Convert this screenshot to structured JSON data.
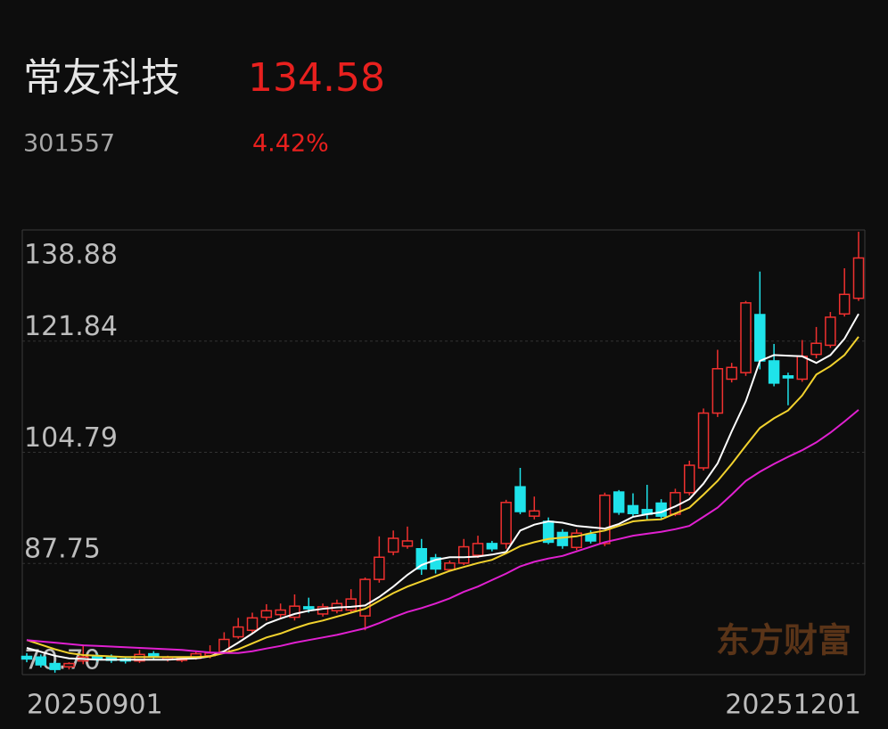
{
  "header": {
    "name": "常友科技",
    "price": "134.58",
    "code": "301557",
    "change": "4.42%"
  },
  "chart_data": {
    "type": "candlestick",
    "watermark": "东方财富",
    "categories": [
      "20250901",
      null,
      null,
      null,
      null,
      null,
      null,
      null,
      null,
      null,
      null,
      null,
      null,
      null,
      null,
      null,
      null,
      null,
      null,
      null,
      null,
      null,
      null,
      null,
      null,
      null,
      null,
      null,
      null,
      null,
      null,
      null,
      null,
      null,
      null,
      null,
      null,
      null,
      null,
      null,
      null,
      null,
      null,
      null,
      null,
      null,
      null,
      null,
      null,
      null,
      null,
      null,
      null,
      null,
      null,
      null,
      null,
      null,
      null,
      "20251201"
    ],
    "open": [
      73.5,
      73.4,
      72.4,
      71.9,
      72.8,
      73.5,
      73.4,
      73.1,
      72.8,
      73.9,
      73.0,
      72.9,
      73.2,
      73.6,
      74.2,
      76.5,
      77.5,
      79.5,
      79.9,
      79.5,
      81.1,
      80.0,
      80.5,
      80.6,
      79.7,
      85.3,
      89.5,
      90.4,
      90.0,
      88.6,
      86.8,
      87.8,
      89.0,
      90.8,
      90.8,
      99.5,
      95.0,
      94.2,
      92.5,
      90.2,
      92.2,
      90.8,
      98.7,
      96.6,
      96.0,
      97.0,
      95.3,
      98.6,
      102.4,
      110.8,
      116.0,
      117.0,
      125.9,
      118.8,
      116.5,
      116.0,
      119.8,
      121.2,
      126.0,
      128.4
    ],
    "close": [
      73.1,
      72.2,
      71.5,
      72.4,
      73.4,
      73.1,
      72.9,
      72.8,
      73.8,
      73.5,
      73.3,
      73.2,
      73.9,
      74.0,
      76.1,
      78.0,
      79.4,
      80.5,
      80.6,
      81.2,
      80.8,
      81.1,
      81.6,
      82.3,
      85.3,
      88.7,
      91.6,
      91.2,
      86.9,
      86.9,
      87.8,
      90.3,
      90.8,
      90.0,
      97.1,
      95.7,
      95.8,
      91.0,
      90.5,
      92.4,
      91.2,
      98.2,
      95.6,
      95.4,
      95.3,
      95.0,
      98.6,
      102.8,
      110.8,
      117.6,
      117.8,
      127.7,
      118.8,
      115.4,
      116.2,
      119.5,
      121.5,
      125.5,
      129.0,
      134.58
    ],
    "high": [
      74.0,
      73.8,
      72.8,
      72.6,
      75.3,
      73.9,
      73.8,
      73.4,
      74.5,
      74.3,
      73.6,
      73.5,
      74.3,
      75.2,
      77.2,
      79.4,
      80.2,
      81.5,
      81.6,
      83.0,
      82.5,
      81.6,
      82.2,
      83.8,
      85.6,
      91.9,
      92.8,
      93.4,
      91.5,
      89.2,
      88.2,
      91.5,
      92.0,
      91.2,
      97.5,
      102.4,
      98.0,
      94.8,
      93.0,
      93.0,
      92.8,
      98.6,
      99.0,
      98.5,
      99.8,
      97.6,
      99.2,
      103.5,
      111.5,
      120.5,
      118.5,
      128.0,
      132.5,
      121.4,
      117.0,
      122.0,
      124.0,
      126.3,
      133.0,
      138.6
    ],
    "low": [
      72.6,
      71.8,
      71.0,
      71.5,
      72.3,
      72.7,
      72.5,
      72.4,
      72.5,
      73.1,
      72.7,
      72.6,
      73.0,
      73.2,
      73.9,
      76.2,
      77.1,
      79.0,
      79.4,
      79.0,
      80.2,
      79.6,
      80.1,
      80.2,
      77.5,
      84.8,
      89.0,
      90.0,
      86.0,
      86.2,
      86.5,
      87.5,
      88.6,
      89.6,
      90.0,
      95.3,
      94.5,
      90.7,
      90.0,
      89.8,
      90.8,
      90.4,
      95.2,
      95.0,
      94.5,
      94.6,
      95.0,
      98.2,
      102.0,
      110.2,
      115.5,
      116.5,
      117.5,
      114.9,
      112.0,
      115.6,
      119.2,
      120.8,
      125.6,
      128.0
    ],
    "up_color": "#f0302f",
    "down_color": "#1fe3ea",
    "lines": [
      {
        "color": "#ffffff",
        "values": [
          74.8,
          74.2,
          73.6,
          73.2,
          73.1,
          73.0,
          73.0,
          73.0,
          73.0,
          73.0,
          73.0,
          73.1,
          73.2,
          73.5,
          74.3,
          75.6,
          77.0,
          78.5,
          79.3,
          80.0,
          80.5,
          80.8,
          81.0,
          81.1,
          81.3,
          82.6,
          84.2,
          86.0,
          87.5,
          88.3,
          88.7,
          88.7,
          88.8,
          89.1,
          89.5,
          92.8,
          93.7,
          94.2,
          94.0,
          93.5,
          93.3,
          93.1,
          93.8,
          94.9,
          95.3,
          95.6,
          96.5,
          97.6,
          100.0,
          103.1,
          108.0,
          112.6,
          118.8,
          119.7,
          119.6,
          119.5,
          118.5,
          119.7,
          122.2,
          126.0
        ]
      },
      {
        "color": "#f2d22e",
        "values": [
          76.0,
          75.3,
          74.6,
          74.0,
          73.7,
          73.6,
          73.5,
          73.4,
          73.4,
          73.4,
          73.4,
          73.4,
          73.4,
          73.5,
          74.0,
          74.6,
          75.5,
          76.4,
          77.0,
          77.8,
          78.5,
          79.0,
          79.6,
          80.2,
          80.8,
          82.0,
          83.2,
          84.2,
          85.0,
          85.8,
          86.6,
          87.2,
          87.8,
          88.3,
          89.3,
          90.4,
          91.0,
          91.5,
          91.7,
          91.9,
          92.4,
          92.8,
          93.5,
          94.2,
          94.4,
          94.5,
          95.4,
          96.3,
          98.3,
          100.4,
          103.0,
          105.8,
          108.5,
          110.0,
          111.2,
          113.5,
          116.7,
          118.0,
          119.7,
          122.5
        ]
      },
      {
        "color": "#e020d0",
        "values": [
          76.0,
          75.8,
          75.6,
          75.4,
          75.2,
          75.1,
          75.0,
          74.9,
          74.8,
          74.7,
          74.6,
          74.5,
          74.3,
          74.1,
          74.0,
          74.0,
          74.3,
          74.7,
          75.1,
          75.6,
          76.0,
          76.4,
          76.8,
          77.3,
          77.8,
          78.6,
          79.5,
          80.3,
          80.9,
          81.6,
          82.4,
          83.4,
          84.2,
          85.2,
          86.2,
          87.3,
          88.0,
          88.5,
          88.9,
          89.6,
          90.3,
          91.0,
          91.5,
          92.0,
          92.3,
          92.6,
          93.0,
          93.5,
          94.9,
          96.3,
          98.3,
          100.4,
          101.8,
          103.0,
          104.1,
          105.1,
          106.3,
          107.8,
          109.5,
          111.3
        ]
      }
    ],
    "ylim": [
      70.7,
      138.88
    ],
    "yticks": [
      138.88,
      121.84,
      104.79,
      87.75,
      {
        "value": 70.7,
        "label": "70.70"
      }
    ],
    "grid": true
  }
}
